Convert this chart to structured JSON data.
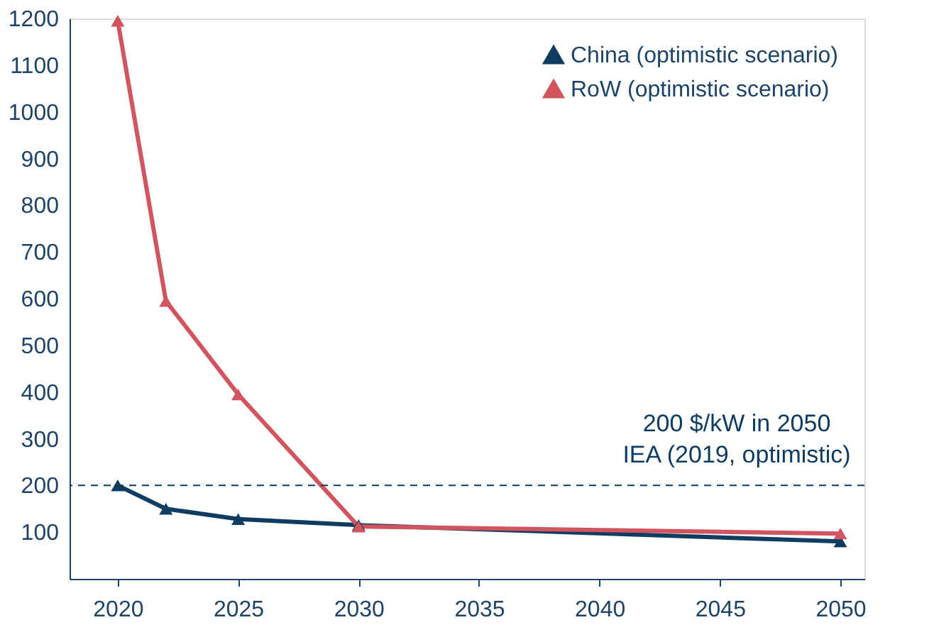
{
  "chart_data": {
    "type": "line",
    "x": [
      2020,
      2022,
      2025,
      2030,
      2050
    ],
    "series": [
      {
        "name": "China (optimistic scenario)",
        "color": "#0f3d62",
        "values": [
          200,
          150,
          128,
          115,
          80
        ]
      },
      {
        "name": "RoW (optimistic scenario)",
        "color": "#d2545e",
        "values": [
          1195,
          595,
          395,
          112,
          97
        ]
      }
    ],
    "xlim": [
      2018,
      2051
    ],
    "xticks": [
      2020,
      2025,
      2030,
      2035,
      2040,
      2045,
      2050
    ],
    "ylim": [
      0,
      1200
    ],
    "yticks": [
      100,
      200,
      300,
      400,
      500,
      600,
      700,
      800,
      900,
      1000,
      1100,
      1200
    ],
    "ref_lines": [
      {
        "axis": "y",
        "value": 200,
        "label": "200 $/kW in 2050\nIEA (2019, optimistic)",
        "color": "#0f3d62",
        "line_style": "dashed"
      }
    ],
    "marker": "triangle",
    "legend": "top right",
    "grid": false
  }
}
